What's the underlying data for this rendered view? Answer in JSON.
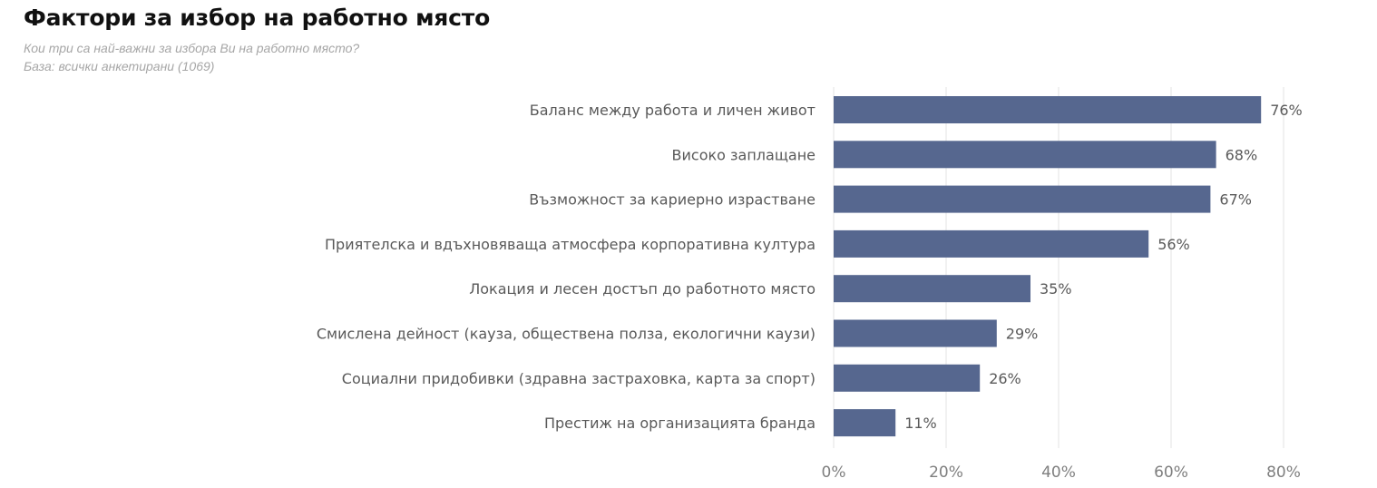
{
  "header": {
    "title": "Фактори за избор на работно място",
    "subtitle_question": "Кои три са най-важни за избора Ви на работно място?",
    "subtitle_base": "База: всички анкетирани (1069)"
  },
  "colors": {
    "bar": "#56678f",
    "gridline": "#e3e3e3",
    "title": "#111111",
    "subtitle": "#a6a6a6",
    "label": "#595959",
    "tick": "#7f7f7f"
  },
  "chart_data": {
    "type": "bar",
    "orientation": "horizontal",
    "title": "Фактори за избор на работно място",
    "categories": [
      "Баланс между работа и личен живот",
      "Високо заплащане",
      "Възможност за кариерно израстване",
      "Приятелска и вдъхновяваща атмосфера корпоративна култура",
      "Локация и лесен достъп до работното място",
      "Смислена дейност (кауза, обществена полза, екологични каузи)",
      "Социални придобивки (здравна застраховка, карта за спорт)",
      "Престиж на организацията бранда"
    ],
    "values": [
      76,
      68,
      67,
      56,
      35,
      29,
      26,
      11
    ],
    "value_labels": [
      "76%",
      "68%",
      "67%",
      "56%",
      "35%",
      "29%",
      "26%",
      "11%"
    ],
    "xlim": [
      0,
      80
    ],
    "xticks": [
      0,
      20,
      40,
      60,
      80
    ],
    "xtick_labels": [
      "0%",
      "20%",
      "40%",
      "60%",
      "80%"
    ],
    "grid": "vertical",
    "legend": "none"
  }
}
